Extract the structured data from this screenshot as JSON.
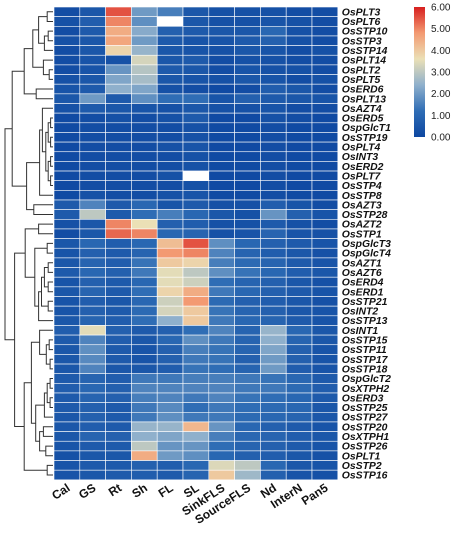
{
  "chart_data": {
    "type": "heatmap",
    "title": "",
    "xlabel": "",
    "ylabel": "",
    "columns": [
      "Cal",
      "GS",
      "Rt",
      "Sh",
      "FL",
      "SL",
      "SinkFLS",
      "SourceFLS",
      "Nd",
      "InterN",
      "Pan5"
    ],
    "rows": [
      "OsPLT3",
      "OsPLT6",
      "OsSTP10",
      "OsSTP3",
      "OsSTP14",
      "OsPLT14",
      "OsPLT2",
      "OsPLT5",
      "OsERD6",
      "OsPLT13",
      "OsAZT4",
      "OsERD5",
      "OspGlcT1",
      "OsSTP19",
      "OsPLT4",
      "OsINT3",
      "OsERD2",
      "OsPLT7",
      "OsSTP4",
      "OsSTP8",
      "OsAZT3",
      "OsSTP28",
      "OsAZT2",
      "OsSTP1",
      "OspGlcT3",
      "OspGlcT4",
      "OsAZT1",
      "OsAZT6",
      "OsERD4",
      "OsERD1",
      "OsSTP21",
      "OsINT2",
      "OsSTP13",
      "OsINT1",
      "OsSTP15",
      "OsSTP11",
      "OsSTP17",
      "OsSTP18",
      "OspGlcT2",
      "OsXTPH2",
      "OsERD3",
      "OsSTP25",
      "OsSTP27",
      "OsSTP20",
      "OsXTPH1",
      "OsSTP26",
      "OsPLT1",
      "OsSTP2",
      "OsSTP16"
    ],
    "values": [
      [
        0.2,
        0.5,
        5.5,
        2.0,
        1.5,
        0.5,
        0.3,
        0.3,
        0.3,
        0.2,
        0.2
      ],
      [
        0.3,
        0.7,
        5.0,
        1.8,
        null,
        0.5,
        0.3,
        0.3,
        0.4,
        0.3,
        0.2
      ],
      [
        0.2,
        0.6,
        4.5,
        2.3,
        0.8,
        0.6,
        0.5,
        0.5,
        1.0,
        0.3,
        0.2
      ],
      [
        0.3,
        0.5,
        4.6,
        2.0,
        0.6,
        0.4,
        0.4,
        0.6,
        0.8,
        0.3,
        0.2
      ],
      [
        0.2,
        0.5,
        3.8,
        2.5,
        0.5,
        0.4,
        0.3,
        0.5,
        0.4,
        0.2,
        0.3
      ],
      [
        0.2,
        0.4,
        0.3,
        3.3,
        0.5,
        0.6,
        0.2,
        0.3,
        0.3,
        0.2,
        0.2
      ],
      [
        0.2,
        0.4,
        1.9,
        2.9,
        0.6,
        0.5,
        0.2,
        0.4,
        0.3,
        0.3,
        0.2
      ],
      [
        0.3,
        0.5,
        2.2,
        2.7,
        0.5,
        0.4,
        0.3,
        0.5,
        0.4,
        0.2,
        0.3
      ],
      [
        0.4,
        0.6,
        2.4,
        2.2,
        0.3,
        0.2,
        0.1,
        0.2,
        0.7,
        0.5,
        0.2
      ],
      [
        0.5,
        2.0,
        0.6,
        1.8,
        1.2,
        1.2,
        0.4,
        0.8,
        0.6,
        0.5,
        0.4
      ],
      [
        0.3,
        0.6,
        0.5,
        0.4,
        0.3,
        0.5,
        0.3,
        0.3,
        0.4,
        0.2,
        0.2
      ],
      [
        0.1,
        0.2,
        0.3,
        0.2,
        0.3,
        0.6,
        0.1,
        0.1,
        0.3,
        0.2,
        0.1
      ],
      [
        0.1,
        0.2,
        0.2,
        0.2,
        0.2,
        0.3,
        0.1,
        0.1,
        0.2,
        0.1,
        0.1
      ],
      [
        0.1,
        0.2,
        0.2,
        0.2,
        0.2,
        0.3,
        0.1,
        0.1,
        0.2,
        0.1,
        0.1
      ],
      [
        0.1,
        0.2,
        0.2,
        0.2,
        0.3,
        0.4,
        0.1,
        0.1,
        0.2,
        0.1,
        0.1
      ],
      [
        0.1,
        0.2,
        0.2,
        0.2,
        0.2,
        0.3,
        0.1,
        0.1,
        0.2,
        0.1,
        0.1
      ],
      [
        0.1,
        0.2,
        0.2,
        0.2,
        0.2,
        0.3,
        0.1,
        0.1,
        0.2,
        0.1,
        0.1
      ],
      [
        0.1,
        0.2,
        0.2,
        0.2,
        0.3,
        null,
        0.1,
        0.1,
        0.2,
        0.1,
        0.1
      ],
      [
        0.1,
        0.2,
        0.2,
        0.2,
        0.2,
        0.3,
        0.1,
        0.1,
        0.2,
        0.1,
        0.1
      ],
      [
        0.1,
        0.3,
        0.2,
        0.2,
        0.3,
        0.4,
        0.1,
        0.1,
        0.2,
        0.1,
        0.1
      ],
      [
        0.6,
        1.6,
        0.6,
        1.0,
        0.4,
        0.6,
        0.3,
        0.3,
        0.7,
        0.4,
        0.2
      ],
      [
        0.6,
        3.0,
        0.6,
        1.2,
        1.5,
        1.0,
        0.5,
        0.3,
        1.9,
        0.8,
        0.4
      ],
      [
        0.3,
        0.5,
        5.0,
        3.6,
        0.8,
        0.7,
        0.3,
        0.3,
        0.6,
        0.3,
        0.2
      ],
      [
        0.2,
        0.5,
        5.3,
        5.0,
        1.0,
        0.9,
        0.3,
        0.4,
        0.9,
        0.4,
        0.3
      ],
      [
        0.5,
        1.0,
        0.7,
        1.0,
        4.2,
        5.5,
        1.8,
        1.0,
        0.8,
        0.6,
        0.4
      ],
      [
        0.4,
        0.8,
        0.6,
        0.9,
        4.8,
        5.0,
        1.6,
        0.9,
        0.7,
        0.5,
        0.3
      ],
      [
        0.5,
        0.9,
        0.7,
        1.3,
        4.0,
        3.8,
        1.5,
        1.1,
        0.9,
        0.6,
        0.4
      ],
      [
        0.6,
        1.0,
        0.8,
        1.4,
        3.5,
        3.0,
        1.8,
        1.3,
        1.0,
        0.7,
        0.5
      ],
      [
        0.4,
        0.8,
        0.6,
        1.0,
        3.5,
        3.2,
        1.2,
        0.9,
        0.8,
        0.5,
        0.3
      ],
      [
        0.5,
        0.9,
        0.6,
        1.2,
        3.8,
        4.5,
        1.4,
        1.0,
        0.8,
        0.6,
        0.4
      ],
      [
        0.4,
        0.7,
        0.5,
        1.0,
        3.2,
        4.8,
        1.1,
        0.8,
        0.7,
        0.5,
        0.3
      ],
      [
        0.4,
        0.8,
        0.6,
        1.1,
        3.3,
        4.0,
        1.3,
        0.9,
        0.8,
        0.5,
        0.4
      ],
      [
        0.5,
        0.9,
        0.7,
        1.2,
        2.4,
        4.0,
        1.4,
        1.0,
        0.9,
        0.6,
        0.4
      ],
      [
        0.7,
        3.5,
        0.8,
        0.6,
        0.8,
        1.2,
        1.6,
        0.9,
        2.5,
        1.0,
        0.5
      ],
      [
        0.6,
        1.6,
        0.7,
        0.5,
        1.0,
        1.8,
        1.4,
        0.9,
        2.4,
        0.9,
        0.5
      ],
      [
        0.5,
        1.8,
        0.6,
        0.4,
        0.8,
        1.5,
        1.3,
        0.9,
        2.2,
        0.8,
        0.4
      ],
      [
        0.5,
        1.7,
        0.6,
        0.4,
        0.8,
        1.4,
        1.3,
        0.8,
        2.0,
        0.8,
        0.4
      ],
      [
        0.5,
        1.6,
        0.5,
        0.5,
        0.7,
        1.3,
        1.2,
        0.9,
        2.0,
        0.7,
        0.4
      ],
      [
        0.6,
        0.9,
        0.7,
        1.4,
        1.4,
        1.5,
        1.5,
        1.4,
        1.3,
        1.0,
        0.6
      ],
      [
        0.7,
        1.0,
        0.8,
        1.6,
        1.6,
        1.6,
        1.6,
        1.4,
        1.4,
        1.1,
        0.7
      ],
      [
        0.6,
        0.9,
        0.8,
        1.5,
        1.6,
        1.4,
        1.6,
        1.3,
        1.2,
        1.0,
        0.6
      ],
      [
        0.6,
        0.8,
        0.6,
        1.4,
        1.7,
        1.2,
        1.4,
        1.2,
        1.1,
        1.0,
        0.5
      ],
      [
        0.5,
        0.8,
        0.6,
        1.4,
        1.8,
        1.4,
        1.4,
        1.1,
        1.0,
        0.9,
        0.5
      ],
      [
        0.5,
        0.7,
        0.6,
        2.5,
        2.5,
        4.3,
        1.9,
        1.0,
        0.8,
        0.6,
        0.4
      ],
      [
        0.5,
        0.9,
        0.8,
        2.4,
        2.2,
        2.4,
        1.5,
        1.0,
        0.9,
        0.7,
        0.5
      ],
      [
        0.4,
        0.6,
        0.6,
        3.0,
        1.9,
        1.9,
        1.2,
        0.9,
        0.8,
        0.6,
        0.4
      ],
      [
        0.3,
        0.5,
        0.5,
        4.5,
        2.0,
        1.8,
        1.0,
        0.8,
        0.7,
        0.5,
        0.3
      ],
      [
        0.4,
        0.6,
        0.6,
        0.8,
        0.7,
        1.0,
        3.4,
        3.0,
        1.0,
        0.5,
        0.4
      ],
      [
        0.4,
        0.5,
        0.6,
        0.7,
        0.6,
        0.9,
        4.0,
        2.6,
        0.8,
        0.4,
        0.3
      ]
    ],
    "color_scale": {
      "min": 0,
      "max": 6,
      "stops": [
        "#0d47a1",
        "#2f6db5",
        "#8fb0cc",
        "#ebe0b6",
        "#f39a72",
        "#d71f1f"
      ],
      "missing_color": "#ffffff"
    },
    "legend": {
      "position": "top-right",
      "tick_labels": [
        "6.00",
        "5.00",
        "4.00",
        "3.00",
        "2.00",
        "1.00",
        "0.00"
      ],
      "tick_values": [
        6,
        5,
        4,
        3,
        2,
        1,
        0
      ]
    },
    "dendrogram": "left"
  }
}
